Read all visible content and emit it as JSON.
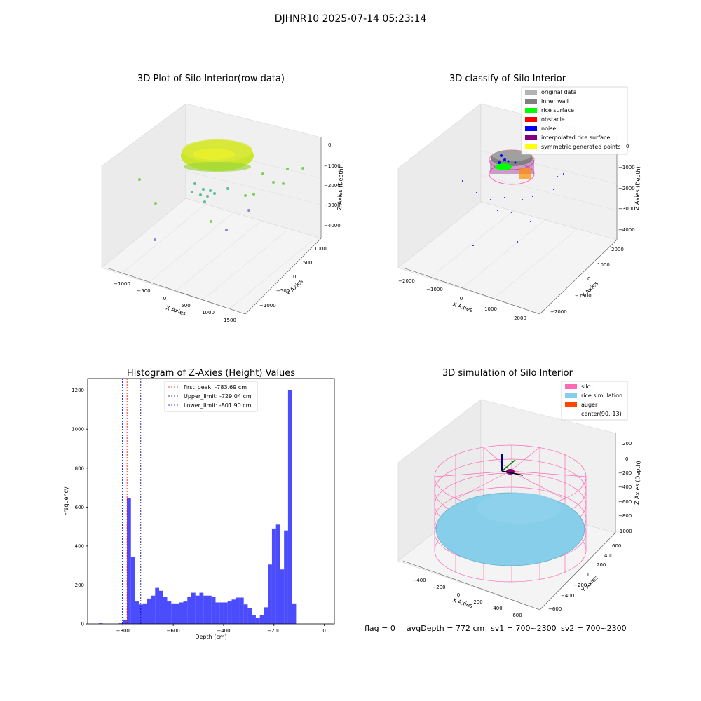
{
  "suptitle": "DJHNR10 2025-07-14 05:23:14",
  "panels": {
    "raw": {
      "title": "3D Plot of Silo Interior(row data)",
      "xlabel": "X Axies",
      "ylabel": "Y Axies",
      "zlabel": "Z Axies (Depth)",
      "xticks": [
        "−1000",
        "−500",
        "0",
        "500",
        "1000",
        "1500"
      ],
      "yticks": [
        "−1000",
        "−500",
        "0",
        "500",
        "1000"
      ],
      "zticks": [
        "0",
        "−1000",
        "−2000",
        "−3000",
        "−4000"
      ]
    },
    "classify": {
      "title": "3D classify of Silo Interior",
      "xlabel": "X Axies",
      "ylabel": "Y Axies",
      "zlabel": "Z Axies (Depth)",
      "xticks": [
        "−2000",
        "−1000",
        "0",
        "1000",
        "2000"
      ],
      "yticks": [
        "−2000",
        "−1000",
        "0",
        "1000",
        "2000"
      ],
      "zticks": [
        "0",
        "−1000",
        "−2000",
        "−3000",
        "−4000"
      ],
      "legend": [
        {
          "label": "original data",
          "color": "#b3b3b3"
        },
        {
          "label": "inner wall",
          "color": "#808080"
        },
        {
          "label": "rice surface",
          "color": "#00ff00"
        },
        {
          "label": "obstacle",
          "color": "#ff0000"
        },
        {
          "label": "noise",
          "color": "#0000ff"
        },
        {
          "label": "interpolated rice surface",
          "color": "#800080"
        },
        {
          "label": "symmetric generated points",
          "color": "#ffff00"
        }
      ]
    },
    "simulation": {
      "title": "3D simulation of Silo Interior",
      "xlabel": "X Axies",
      "ylabel": "Y Axies",
      "zlabel": "Z Axies (Depth)",
      "xticks": [
        "−400",
        "−200",
        "0",
        "200",
        "400",
        "600"
      ],
      "yticks": [
        "−600",
        "−400",
        "−200",
        "0",
        "200",
        "400",
        "600"
      ],
      "zticks": [
        "200",
        "0",
        "−200",
        "−400",
        "−600",
        "−800",
        "−1000"
      ],
      "legend": [
        {
          "label": "silo",
          "color": "#ff69b4"
        },
        {
          "label": "rice simulation",
          "color": "#87ceeb"
        },
        {
          "label": "auger",
          "color": "#ff4500"
        },
        {
          "label": "center(90,-13)",
          "color": ""
        }
      ]
    }
  },
  "chart_data": {
    "type": "bar",
    "title": "Histogram of Z-Axies (Height) Values",
    "xlabel": "Depth (cm)",
    "ylabel": "Frequency",
    "xlim": [
      -940,
      40
    ],
    "ylim": [
      0,
      1260
    ],
    "xticks": [
      -800,
      -600,
      -400,
      -200,
      0
    ],
    "yticks": [
      0,
      200,
      400,
      600,
      800,
      1000,
      1200
    ],
    "bar_color": "#0000ff",
    "bin_width": 16,
    "bins": [
      {
        "x": -896,
        "count": 3
      },
      {
        "x": -880,
        "count": 0
      },
      {
        "x": -864,
        "count": 0
      },
      {
        "x": -848,
        "count": 0
      },
      {
        "x": -832,
        "count": 0
      },
      {
        "x": -816,
        "count": 3
      },
      {
        "x": -800,
        "count": 20
      },
      {
        "x": -784,
        "count": 645
      },
      {
        "x": -768,
        "count": 345
      },
      {
        "x": -752,
        "count": 115
      },
      {
        "x": -736,
        "count": 100
      },
      {
        "x": -720,
        "count": 105
      },
      {
        "x": -704,
        "count": 130
      },
      {
        "x": -688,
        "count": 145
      },
      {
        "x": -672,
        "count": 185
      },
      {
        "x": -656,
        "count": 170
      },
      {
        "x": -640,
        "count": 140
      },
      {
        "x": -624,
        "count": 115
      },
      {
        "x": -608,
        "count": 105
      },
      {
        "x": -592,
        "count": 105
      },
      {
        "x": -576,
        "count": 110
      },
      {
        "x": -560,
        "count": 115
      },
      {
        "x": -544,
        "count": 140
      },
      {
        "x": -528,
        "count": 160
      },
      {
        "x": -512,
        "count": 145
      },
      {
        "x": -496,
        "count": 160
      },
      {
        "x": -480,
        "count": 145
      },
      {
        "x": -464,
        "count": 145
      },
      {
        "x": -448,
        "count": 140
      },
      {
        "x": -432,
        "count": 110
      },
      {
        "x": -416,
        "count": 110
      },
      {
        "x": -400,
        "count": 110
      },
      {
        "x": -384,
        "count": 115
      },
      {
        "x": -368,
        "count": 125
      },
      {
        "x": -352,
        "count": 135
      },
      {
        "x": -336,
        "count": 135
      },
      {
        "x": -320,
        "count": 100
      },
      {
        "x": -304,
        "count": 80
      },
      {
        "x": -288,
        "count": 45
      },
      {
        "x": -272,
        "count": 30
      },
      {
        "x": -256,
        "count": 45
      },
      {
        "x": -240,
        "count": 85
      },
      {
        "x": -224,
        "count": 305
      },
      {
        "x": -208,
        "count": 490
      },
      {
        "x": -192,
        "count": 510
      },
      {
        "x": -176,
        "count": 280
      },
      {
        "x": -160,
        "count": 480
      },
      {
        "x": -144,
        "count": 1200
      },
      {
        "x": -128,
        "count": 105
      }
    ],
    "vlines": [
      {
        "label": "first_peak: -783.69 cm",
        "x": -783.69,
        "color": "#ff0000"
      },
      {
        "label": "Upper_limit: -729.04 cm",
        "x": -729.04,
        "color": "#00008b"
      },
      {
        "label": "Lower_limit: -801.90 cm",
        "x": -801.9,
        "color": "#0000ff"
      }
    ]
  },
  "footer": {
    "flag": "flag = 0",
    "avg": "avgDepth = 772 cm",
    "sv1": "sv1 = 700~2300",
    "sv2": "sv2 = 700~2300"
  }
}
